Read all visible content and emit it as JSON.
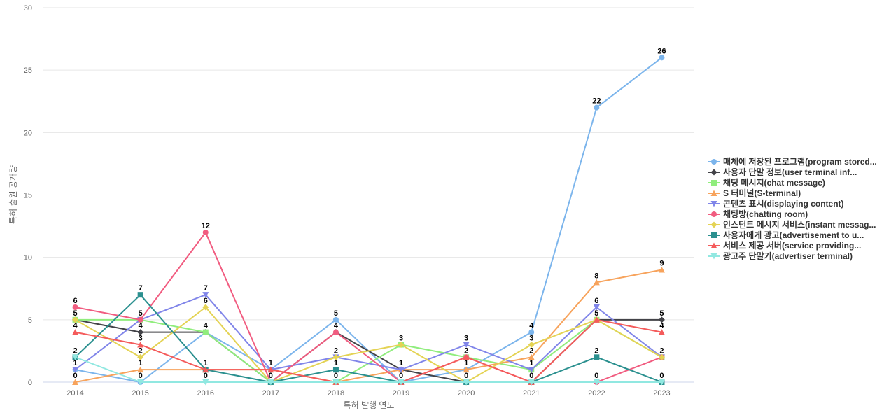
{
  "chart_data": {
    "type": "line",
    "title": "",
    "xlabel": "특허 발행 연도",
    "ylabel": "특허 출원 공개량",
    "categories": [
      "2014",
      "2015",
      "2016",
      "2017",
      "2018",
      "2019",
      "2020",
      "2021",
      "2022",
      "2023"
    ],
    "ylim": [
      0,
      30
    ],
    "yticks": [
      "0",
      "5",
      "10",
      "15",
      "20",
      "25",
      "30"
    ],
    "grid": true,
    "legend_position": "right",
    "series": [
      {
        "name": "매체에 저장된 프로그램(program stored...",
        "color": "#7cb5ec",
        "marker": "circle",
        "values": [
          1,
          0,
          4,
          1,
          5,
          0,
          1,
          4,
          22,
          26
        ]
      },
      {
        "name": "사용자 단말 정보(user terminal inf...",
        "color": "#434348",
        "marker": "diamond",
        "values": [
          5,
          4,
          4,
          0,
          4,
          1,
          0,
          0,
          5,
          5
        ]
      },
      {
        "name": "채팅 메시지(chat message)",
        "color": "#90ed7d",
        "marker": "square",
        "values": [
          5,
          5,
          4,
          0,
          0,
          3,
          2,
          1,
          5,
          2
        ]
      },
      {
        "name": "S 터미널(S-terminal)",
        "color": "#f7a35c",
        "marker": "triangle",
        "values": [
          0,
          1,
          1,
          1,
          0,
          1,
          1,
          2,
          8,
          9
        ]
      },
      {
        "name": "콘텐츠 표시(displaying content)",
        "color": "#8085e9",
        "marker": "triangle-down",
        "values": [
          1,
          5,
          7,
          1,
          2,
          1,
          3,
          1,
          6,
          2
        ]
      },
      {
        "name": "채팅방(chatting room)",
        "color": "#f15c80",
        "marker": "circle",
        "values": [
          6,
          5,
          12,
          0,
          4,
          0,
          2,
          0,
          0,
          2
        ]
      },
      {
        "name": "인스턴트 메시지 서비스(instant messag...",
        "color": "#e4d354",
        "marker": "diamond",
        "values": [
          5,
          2,
          6,
          0,
          2,
          3,
          0,
          3,
          5,
          2
        ]
      },
      {
        "name": "사용자에게 광고(advertisement to u...",
        "color": "#2b908f",
        "marker": "square",
        "values": [
          2,
          7,
          1,
          0,
          1,
          0,
          0,
          0,
          2,
          0
        ]
      },
      {
        "name": "서비스 제공 서버(service providing...",
        "color": "#f45b5b",
        "marker": "triangle",
        "values": [
          4,
          3,
          1,
          1,
          0,
          0,
          2,
          0,
          5,
          4
        ]
      },
      {
        "name": "광고주 단말기(advertiser terminal)",
        "color": "#91e8e1",
        "marker": "triangle-down",
        "values": [
          2,
          0,
          0,
          0,
          0,
          0,
          0,
          0,
          0,
          0
        ]
      }
    ],
    "data_labels": [
      {
        "x": "2014",
        "labels": [
          "6",
          "5",
          "4",
          "2",
          "1",
          "0"
        ]
      },
      {
        "x": "2015",
        "labels": [
          "7",
          "5",
          "4",
          "3",
          "2",
          "1",
          "0"
        ]
      },
      {
        "x": "2016",
        "labels": [
          "12",
          "7",
          "6",
          "4",
          "1",
          "0"
        ]
      },
      {
        "x": "2017",
        "labels": [
          "1",
          "0"
        ]
      },
      {
        "x": "2018",
        "labels": [
          "5",
          "4",
          "2",
          "1",
          "0"
        ]
      },
      {
        "x": "2019",
        "labels": [
          "3",
          "1",
          "0"
        ]
      },
      {
        "x": "2020",
        "labels": [
          "3",
          "2",
          "1",
          "0"
        ]
      },
      {
        "x": "2021",
        "labels": [
          "4",
          "3",
          "2",
          "1",
          "0"
        ]
      },
      {
        "x": "2022",
        "labels": [
          "22",
          "8",
          "6",
          "5",
          "2",
          "0"
        ]
      },
      {
        "x": "2023",
        "labels": [
          "26",
          "9",
          "5",
          "4",
          "2",
          "0"
        ]
      }
    ]
  }
}
